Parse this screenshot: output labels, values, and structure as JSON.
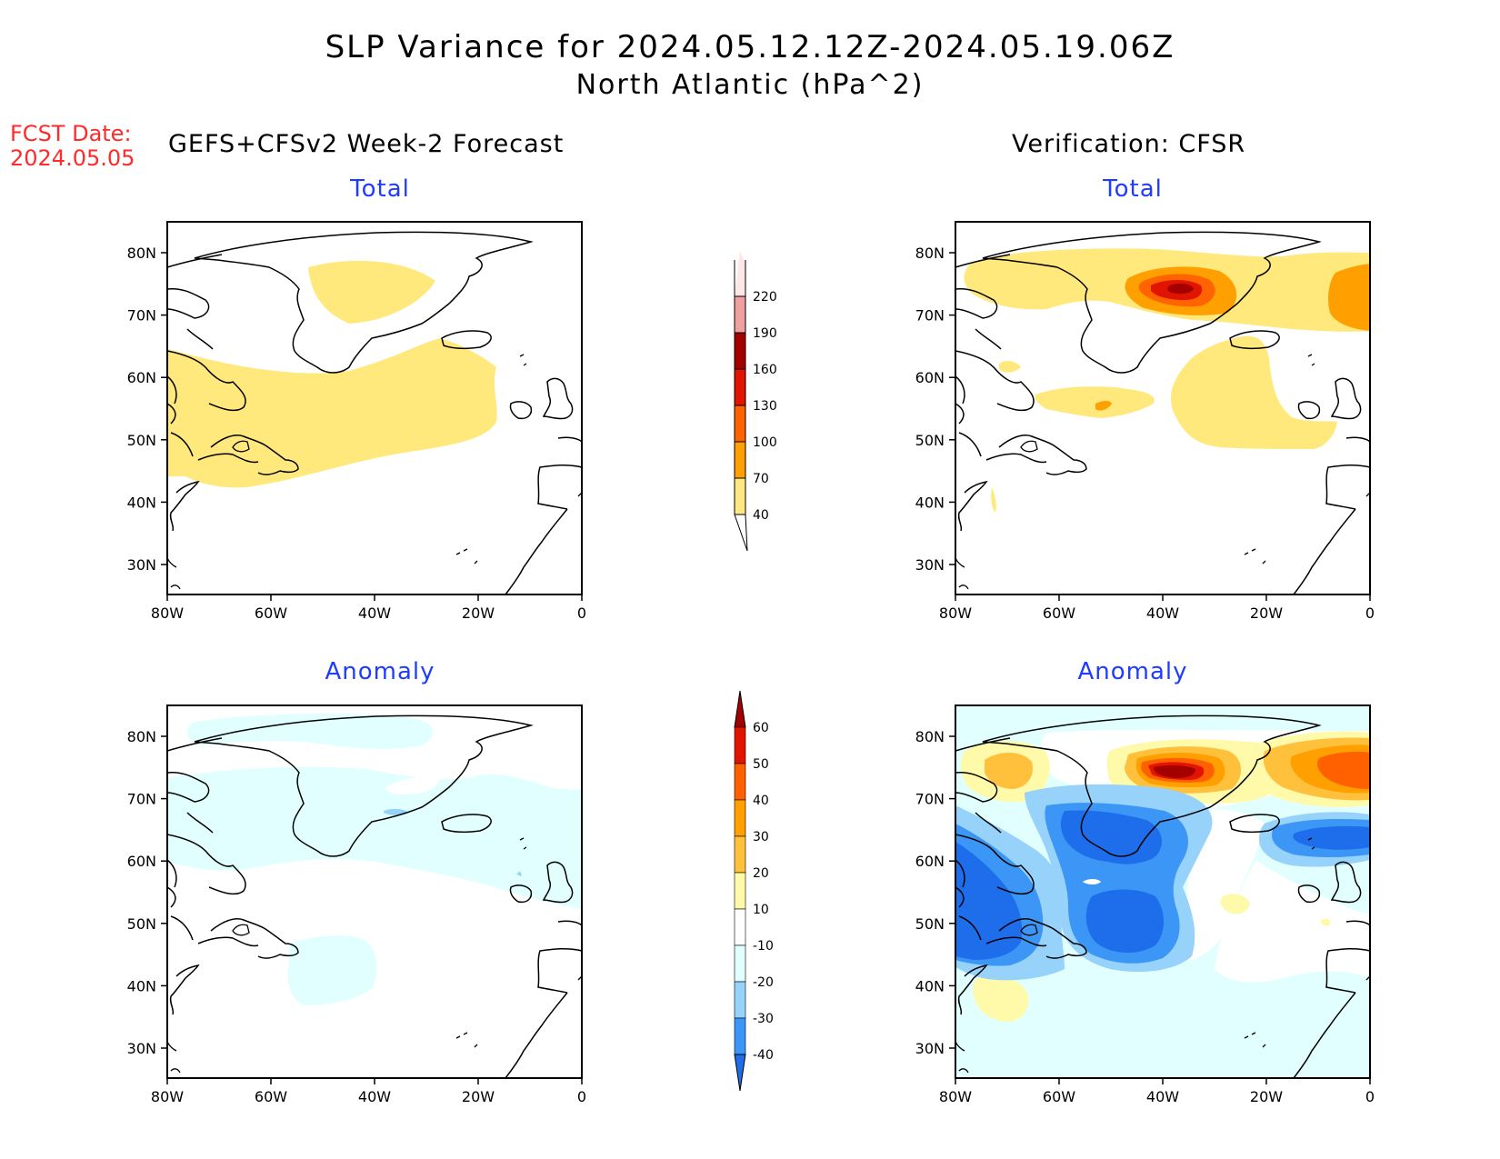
{
  "title": {
    "line1": "SLP Variance for 2024.05.12.12Z-2024.05.19.06Z",
    "line2": "North Atlantic (hPa^2)"
  },
  "fcst_date": {
    "label": "FCST Date:",
    "value": "2024.05.05"
  },
  "headers": {
    "left": "GEFS+CFSv2 Week-2 Forecast",
    "right": "Verification: CFSR"
  },
  "panels": {
    "fc_total": "Total",
    "fc_anom": "Anomaly",
    "ver_total": "Total",
    "ver_anom": "Anomaly"
  },
  "axes": {
    "lat_ticks": [
      "80N",
      "70N",
      "60N",
      "50N",
      "40N",
      "30N"
    ],
    "lon_ticks": [
      "80W",
      "60W",
      "40W",
      "20W",
      "0"
    ]
  },
  "chart_data": [
    {
      "type": "heatmap",
      "title": "Total",
      "group": "GEFS+CFSv2 Week-2 Forecast",
      "units": "hPa^2",
      "lon_range": [
        -80,
        0
      ],
      "lat_range": [
        25,
        85
      ],
      "levels": [
        40,
        70,
        100,
        130,
        160,
        190,
        220
      ],
      "features": [
        {
          "region": "over Greenland near 75N 40W",
          "band": "40-70"
        },
        {
          "region": "broad zone 43N-63N, 80W-20W",
          "band": "40-70"
        }
      ]
    },
    {
      "type": "heatmap",
      "title": "Total",
      "group": "Verification: CFSR",
      "units": "hPa^2",
      "lon_range": [
        -80,
        0
      ],
      "lat_range": [
        25,
        85
      ],
      "levels": [
        40,
        70,
        100,
        130,
        160,
        190,
        220
      ],
      "features": [
        {
          "region": "northern band 70N-80N, 80W-0",
          "band": "40-70"
        },
        {
          "region": "east of Greenland near 75N 33W",
          "band": "160-190"
        },
        {
          "region": "near 72N 0",
          "band": "70-100"
        },
        {
          "region": "central Atlantic 45N-62N, 40W-5W",
          "band": "40-70"
        },
        {
          "region": "near 52N 55W",
          "band": "70-100"
        }
      ]
    },
    {
      "type": "heatmap",
      "title": "Anomaly",
      "group": "GEFS+CFSv2 Week-2 Forecast",
      "units": "hPa^2",
      "lon_range": [
        -80,
        0
      ],
      "lat_range": [
        25,
        85
      ],
      "levels": [
        -40,
        -30,
        -20,
        -10,
        10,
        20,
        30,
        40,
        50,
        60
      ],
      "features": [
        {
          "region": "northern belt 55N-83N",
          "band": "-20 to -10"
        },
        {
          "region": "near 42N 50W",
          "band": "-20 to -10"
        },
        {
          "region": "near 68N 37W",
          "band": "-30 to -20"
        }
      ]
    },
    {
      "type": "heatmap",
      "title": "Anomaly",
      "group": "Verification: CFSR",
      "units": "hPa^2",
      "lon_range": [
        -80,
        0
      ],
      "lat_range": [
        25,
        85
      ],
      "levels": [
        -40,
        -30,
        -20,
        -10,
        10,
        20,
        30,
        40,
        50,
        60
      ],
      "features": [
        {
          "region": "east of Greenland near 75N 33W",
          "band": ">60"
        },
        {
          "region": "near 73N 0",
          "band": "40-50"
        },
        {
          "region": "near 75N 70W",
          "band": "20-30"
        },
        {
          "region": "near 50N 75W",
          "band": "-40 to -30"
        },
        {
          "region": "near 50N 45W",
          "band": "-40 to -30"
        },
        {
          "region": "near 62N 5W",
          "band": "-40 to -30"
        },
        {
          "region": "near 62N 55W",
          "band": "-30 to -20"
        },
        {
          "region": "near 35N 70W",
          "band": "10-20"
        }
      ]
    }
  ],
  "colorbars": {
    "total": {
      "labels": [
        "40",
        "70",
        "100",
        "130",
        "160",
        "190",
        "220"
      ],
      "colors": [
        "#ffe882",
        "#ffa000",
        "#ff6400",
        "#e11400",
        "#a50000",
        "#f0a0a0",
        "#fde7e7"
      ]
    },
    "anomaly": {
      "labels": [
        "-40",
        "-30",
        "-20",
        "-10",
        "10",
        "20",
        "30",
        "40",
        "50",
        "60"
      ],
      "colors": [
        "#1e6eeb",
        "#3c96f5",
        "#96d2fa",
        "#e1ffff",
        "#ffffff",
        "#fffaaa",
        "#ffc03c",
        "#ffa000",
        "#ff6000",
        "#e11400",
        "#a50000"
      ]
    }
  },
  "colors": {
    "fill_40_70": "#ffe87c",
    "fill_70_100": "#ffa000",
    "fill_100_130": "#ff6400",
    "fill_130_160": "#e11400",
    "fill_160_190": "#a50000",
    "anom_pos_10_20": "#fffaaa",
    "anom_pos_20_30": "#ffc03c",
    "anom_neg_10_20": "#e1ffff",
    "anom_neg_20_30": "#96d2fa",
    "anom_neg_30_40": "#3c96f5",
    "anom_neg_40": "#1e6eeb"
  }
}
